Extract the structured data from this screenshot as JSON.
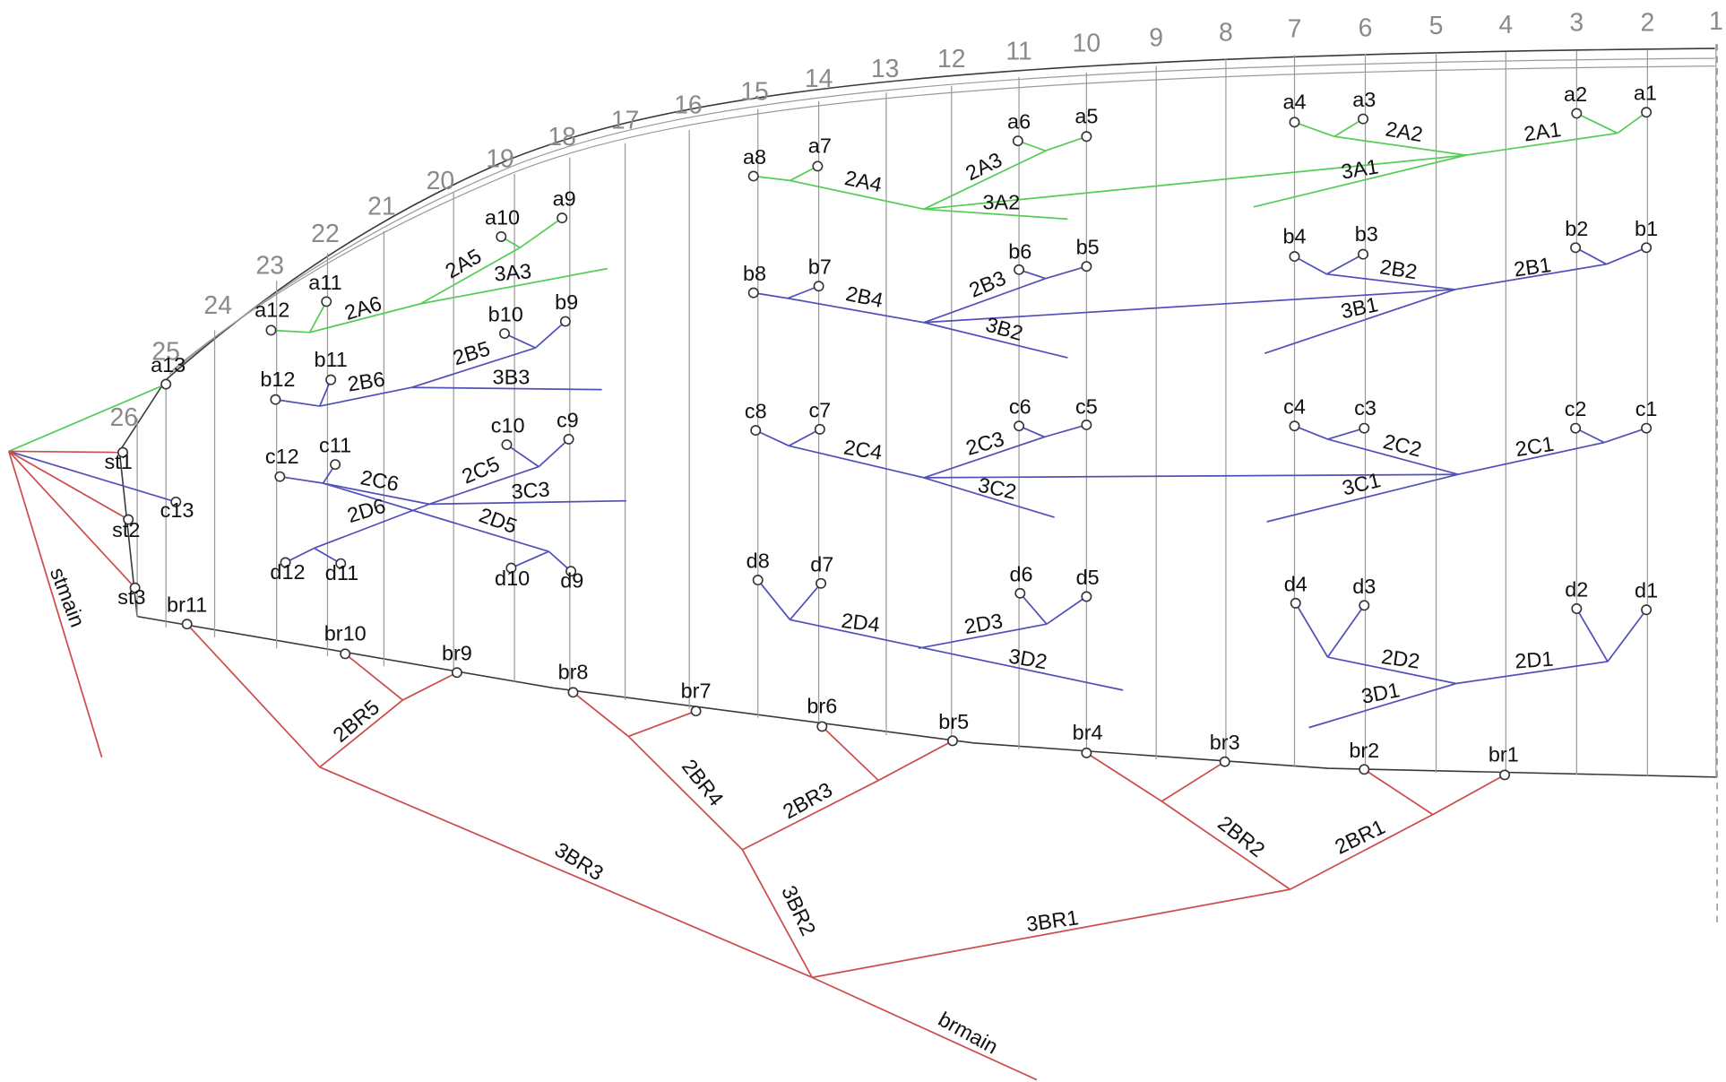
{
  "colors": {
    "background": "#ffffff",
    "outline": "#3a3a3a",
    "rule": "#9a9a9a",
    "ruleNumber": "#8a8a8a",
    "branch_a": "#55cc55",
    "branch_bcd": "#5050b8",
    "branch_red": "#cc4c4c",
    "text": "#111111"
  },
  "rule_numbers": [
    "1",
    "2",
    "3",
    "4",
    "5",
    "6",
    "7",
    "8",
    "9",
    "10",
    "11",
    "12",
    "13",
    "14",
    "15",
    "16",
    "17",
    "18",
    "19",
    "20",
    "21",
    "22",
    "23",
    "24",
    "25",
    "26"
  ],
  "nodes": {
    "a": [
      "a1",
      "a2",
      "a3",
      "a4",
      "a5",
      "a6",
      "a7",
      "a8",
      "a9",
      "a10",
      "a11",
      "a12",
      "a13"
    ],
    "b": [
      "b1",
      "b2",
      "b3",
      "b4",
      "b5",
      "b6",
      "b7",
      "b8",
      "b9",
      "b10",
      "b11",
      "b12"
    ],
    "c": [
      "c1",
      "c2",
      "c3",
      "c4",
      "c5",
      "c6",
      "c7",
      "c8",
      "c9",
      "c10",
      "c11",
      "c12",
      "c13"
    ],
    "d": [
      "d1",
      "d2",
      "d3",
      "d4",
      "d5",
      "d6",
      "d7",
      "d8",
      "d9",
      "d10",
      "d11",
      "d12"
    ],
    "st": [
      "st1",
      "st2",
      "st3"
    ],
    "br": [
      "br1",
      "br2",
      "br3",
      "br4",
      "br5",
      "br6",
      "br7",
      "br8",
      "br9",
      "br10",
      "br11"
    ]
  },
  "branch_labels": {
    "a": [
      "2A1",
      "2A2",
      "3A1",
      "2A3",
      "3A2",
      "2A4",
      "2A5",
      "3A3",
      "2A6"
    ],
    "b": [
      "2B1",
      "2B2",
      "3B1",
      "2B3",
      "3B2",
      "2B4",
      "2B5",
      "3B3",
      "2B6"
    ],
    "c": [
      "2C1",
      "2C2",
      "3C1",
      "2C3",
      "3C2",
      "2C4",
      "2C5",
      "3C3",
      "2C6"
    ],
    "d": [
      "2D1",
      "2D2",
      "3D1",
      "2D3",
      "3D2",
      "2D4",
      "2D5",
      "2D6"
    ],
    "br": [
      "2BR1",
      "2BR2",
      "3BR1",
      "2BR3",
      "2BR4",
      "3BR2",
      "2BR5",
      "3BR3"
    ],
    "main": [
      "stmain",
      "brmain"
    ]
  }
}
